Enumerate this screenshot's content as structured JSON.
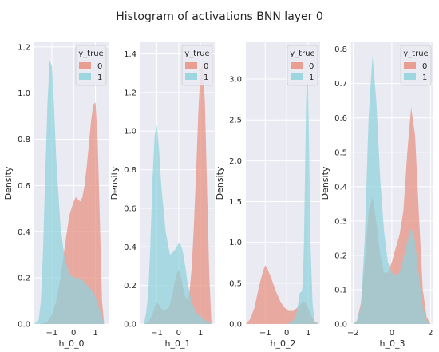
{
  "figure": {
    "title": "Histogram of activations BNN layer 0",
    "background": "#ffffff",
    "panel_background": "#eaeaf2",
    "grid_color": "#ffffff"
  },
  "legend": {
    "title": "y_true",
    "entries": [
      {
        "label": "0",
        "color": "#e8907f"
      },
      {
        "label": "1",
        "color": "#8fd2dc"
      }
    ]
  },
  "chart_data": [
    {
      "type": "area",
      "xlabel": "h_0_0",
      "ylabel": "Density",
      "xlim": [
        -1.8,
        1.6
      ],
      "ylim": [
        0,
        1.22
      ],
      "xticks": [
        -1,
        0,
        1
      ],
      "yticks": [
        0.0,
        0.2,
        0.4,
        0.6,
        0.8,
        1.0,
        1.2
      ],
      "ytick_labels": [
        "0.0",
        "0.2",
        "0.4",
        "0.6",
        "0.8",
        "1.0",
        "1.2"
      ],
      "grid": true,
      "legend_position": "top-right",
      "series": [
        {
          "name": "0",
          "x": [
            -1.8,
            -1.6,
            -1.4,
            -1.2,
            -1.0,
            -0.8,
            -0.6,
            -0.4,
            -0.2,
            0.0,
            0.1,
            0.2,
            0.3,
            0.4,
            0.5,
            0.6,
            0.7,
            0.8,
            0.9,
            1.0,
            1.1,
            1.2,
            1.3,
            1.4
          ],
          "y": [
            0.0,
            0.0,
            0.002,
            0.01,
            0.04,
            0.1,
            0.2,
            0.34,
            0.47,
            0.53,
            0.55,
            0.54,
            0.53,
            0.55,
            0.6,
            0.68,
            0.78,
            0.88,
            0.95,
            0.96,
            0.8,
            0.45,
            0.1,
            0.0
          ]
        },
        {
          "name": "1",
          "x": [
            -1.8,
            -1.6,
            -1.5,
            -1.4,
            -1.3,
            -1.2,
            -1.1,
            -1.0,
            -0.9,
            -0.8,
            -0.6,
            -0.4,
            -0.2,
            0.0,
            0.2,
            0.4,
            0.6,
            0.8,
            1.0,
            1.2,
            1.4
          ],
          "y": [
            0.0,
            0.02,
            0.1,
            0.32,
            0.65,
            0.95,
            1.14,
            1.12,
            0.95,
            0.72,
            0.42,
            0.28,
            0.22,
            0.2,
            0.2,
            0.19,
            0.17,
            0.15,
            0.12,
            0.06,
            0.0
          ]
        }
      ]
    },
    {
      "type": "area",
      "xlabel": "h_0_1",
      "ylabel": "Density",
      "xlim": [
        -1.75,
        1.65
      ],
      "ylim": [
        0,
        1.46
      ],
      "xticks": [
        -1,
        0,
        1
      ],
      "yticks": [
        0.0,
        0.2,
        0.4,
        0.6,
        0.8,
        1.0,
        1.2,
        1.4
      ],
      "ytick_labels": [
        "0.0",
        "0.2",
        "0.4",
        "0.6",
        "0.8",
        "1.0",
        "1.2",
        "1.4"
      ],
      "grid": true,
      "legend_position": "top-right",
      "series": [
        {
          "name": "0",
          "x": [
            -1.6,
            -1.4,
            -1.2,
            -1.1,
            -1.0,
            -0.9,
            -0.8,
            -0.6,
            -0.4,
            -0.3,
            -0.2,
            -0.1,
            0.0,
            0.1,
            0.2,
            0.3,
            0.4,
            0.5,
            0.6,
            0.7,
            0.8,
            0.9,
            1.0,
            1.1,
            1.2,
            1.3,
            1.4,
            1.5
          ],
          "y": [
            0.0,
            0.01,
            0.05,
            0.09,
            0.11,
            0.1,
            0.08,
            0.07,
            0.1,
            0.15,
            0.21,
            0.26,
            0.28,
            0.25,
            0.19,
            0.14,
            0.13,
            0.17,
            0.3,
            0.52,
            0.8,
            1.1,
            1.32,
            1.35,
            1.15,
            0.7,
            0.25,
            0.0
          ]
        },
        {
          "name": "1",
          "x": [
            -1.6,
            -1.5,
            -1.4,
            -1.3,
            -1.2,
            -1.1,
            -1.0,
            -0.9,
            -0.8,
            -0.6,
            -0.4,
            -0.2,
            0.0,
            0.1,
            0.2,
            0.3,
            0.4,
            0.6,
            0.8,
            1.0,
            1.2,
            1.4,
            1.5
          ],
          "y": [
            0.0,
            0.05,
            0.15,
            0.4,
            0.75,
            0.98,
            1.03,
            0.9,
            0.72,
            0.48,
            0.36,
            0.38,
            0.42,
            0.41,
            0.37,
            0.3,
            0.22,
            0.11,
            0.06,
            0.04,
            0.02,
            0.01,
            0.0
          ]
        }
      ]
    },
    {
      "type": "area",
      "xlabel": "h_0_2",
      "ylabel": "Density",
      "xlim": [
        -1.9,
        1.55
      ],
      "ylim": [
        0,
        3.45
      ],
      "xticks": [
        -1,
        0,
        1
      ],
      "yticks": [
        0.0,
        0.5,
        1.0,
        1.5,
        2.0,
        2.5,
        3.0
      ],
      "ytick_labels": [
        "0.0",
        "0.5",
        "1.0",
        "1.5",
        "2.0",
        "2.5",
        "3.0"
      ],
      "grid": true,
      "legend_position": "top-right",
      "series": [
        {
          "name": "0",
          "x": [
            -1.9,
            -1.7,
            -1.5,
            -1.3,
            -1.1,
            -1.0,
            -0.9,
            -0.7,
            -0.5,
            -0.3,
            -0.1,
            0.1,
            0.3,
            0.5,
            0.7,
            0.8,
            0.9,
            1.0,
            1.1,
            1.3,
            1.5
          ],
          "y": [
            0.0,
            0.06,
            0.2,
            0.45,
            0.65,
            0.72,
            0.68,
            0.55,
            0.4,
            0.28,
            0.2,
            0.16,
            0.16,
            0.2,
            0.26,
            0.28,
            0.26,
            0.2,
            0.12,
            0.03,
            0.0
          ]
        },
        {
          "name": "1",
          "x": [
            -1.9,
            0.0,
            0.2,
            0.4,
            0.5,
            0.6,
            0.7,
            0.75,
            0.8,
            0.85,
            0.9,
            0.95,
            1.0,
            1.05,
            1.1,
            1.2,
            1.3,
            1.5
          ],
          "y": [
            0.0,
            0.0,
            0.02,
            0.08,
            0.2,
            0.38,
            0.4,
            0.5,
            1.0,
            1.8,
            2.7,
            3.1,
            2.9,
            2.0,
            1.0,
            0.25,
            0.02,
            0.0
          ]
        }
      ]
    },
    {
      "type": "area",
      "xlabel": "h_0_3",
      "ylabel": "Density",
      "xlim": [
        -2.1,
        2.15
      ],
      "ylim": [
        0,
        0.82
      ],
      "xticks": [
        -2,
        0,
        2
      ],
      "yticks": [
        0.0,
        0.1,
        0.2,
        0.3,
        0.4,
        0.5,
        0.6,
        0.7,
        0.8
      ],
      "ytick_labels": [
        "0.0",
        "0.1",
        "0.2",
        "0.3",
        "0.4",
        "0.5",
        "0.6",
        "0.7",
        "0.8"
      ],
      "grid": true,
      "legend_position": "top-right",
      "series": [
        {
          "name": "0",
          "x": [
            -2.0,
            -1.8,
            -1.6,
            -1.4,
            -1.2,
            -1.0,
            -0.8,
            -0.6,
            -0.4,
            -0.2,
            0.0,
            0.2,
            0.4,
            0.6,
            0.8,
            1.0,
            1.2,
            1.4,
            1.6,
            1.8,
            2.0
          ],
          "y": [
            0.0,
            0.01,
            0.06,
            0.18,
            0.33,
            0.37,
            0.3,
            0.2,
            0.15,
            0.15,
            0.18,
            0.22,
            0.26,
            0.33,
            0.5,
            0.63,
            0.55,
            0.32,
            0.1,
            0.02,
            0.0
          ]
        },
        {
          "name": "1",
          "x": [
            -2.0,
            -1.8,
            -1.6,
            -1.4,
            -1.2,
            -1.0,
            -0.8,
            -0.6,
            -0.4,
            -0.2,
            0.0,
            0.2,
            0.4,
            0.6,
            0.8,
            1.0,
            1.2,
            1.4,
            1.6,
            1.8,
            2.0
          ],
          "y": [
            0.0,
            0.01,
            0.05,
            0.25,
            0.6,
            0.78,
            0.65,
            0.42,
            0.27,
            0.18,
            0.15,
            0.14,
            0.15,
            0.19,
            0.24,
            0.28,
            0.24,
            0.14,
            0.05,
            0.01,
            0.0
          ]
        }
      ]
    }
  ]
}
